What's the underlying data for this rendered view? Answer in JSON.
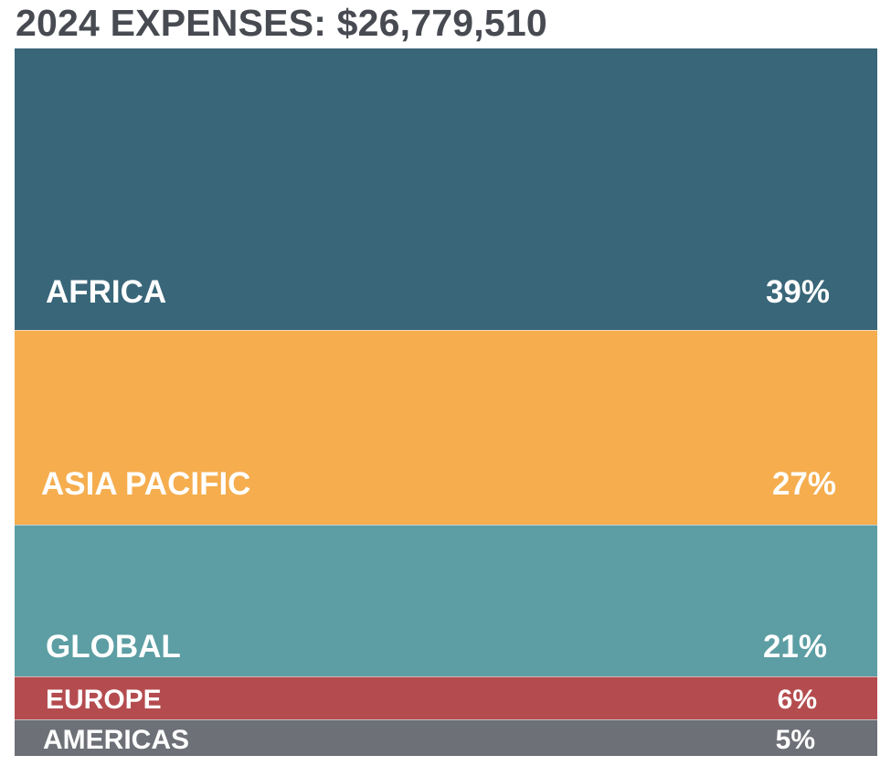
{
  "title": "2024 EXPENSES: $26,779,510",
  "chart_data": {
    "type": "bar",
    "orientation": "stacked-proportional",
    "title": "2024 EXPENSES: $26,779,510",
    "total": 26779510,
    "unit": "%",
    "categories": [
      "AFRICA",
      "ASIA PACIFIC",
      "GLOBAL",
      "EUROPE",
      "AMERICAS"
    ],
    "values": [
      39,
      27,
      21,
      6,
      5
    ],
    "value_labels": [
      "39%",
      "27%",
      "21%",
      "6%",
      "5%"
    ],
    "colors": [
      "#396679",
      "#f5ad4e",
      "#5c9ea3",
      "#b44c4f",
      "#6d7077"
    ],
    "legend": "none",
    "grid": false
  }
}
